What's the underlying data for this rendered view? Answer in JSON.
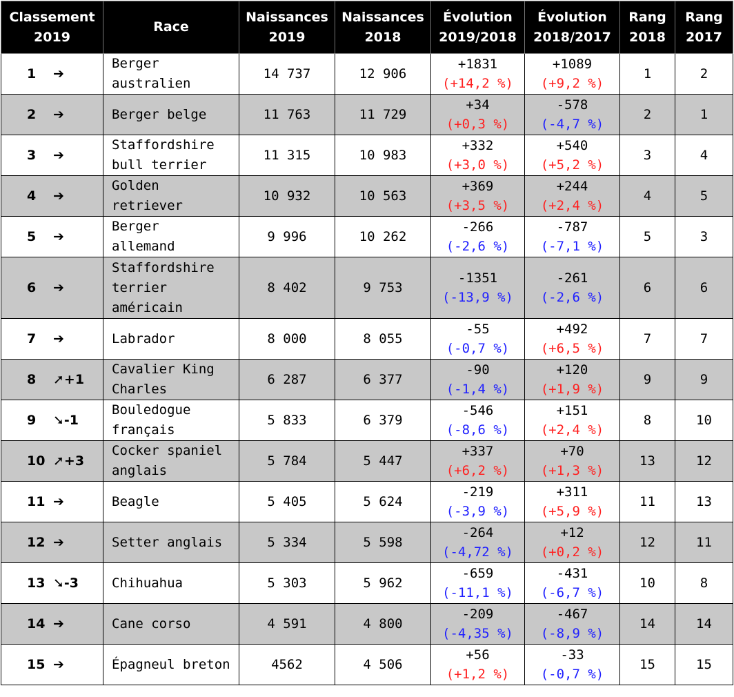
{
  "headers": {
    "rank": [
      "Classement",
      "2019"
    ],
    "race": [
      "Race"
    ],
    "n2019": [
      "Naissances",
      "2019"
    ],
    "n2018": [
      "Naissances",
      "2018"
    ],
    "evo1918": [
      "Évolution",
      "2019/2018"
    ],
    "evo1817": [
      "Évolution",
      "2018/2017"
    ],
    "rank2018": [
      "Rang",
      "2018"
    ],
    "rank2017": [
      "Rang",
      "2017"
    ]
  },
  "colors": {
    "increase": "#ff2020",
    "decrease": "#2020ff",
    "header_bg": "#000000",
    "row_alt": "#c8c8c8"
  },
  "rows": [
    {
      "rank": "1",
      "move": "➔",
      "race": [
        "Berger",
        "australien"
      ],
      "n2019": "14 737",
      "n2018": "12 906",
      "e1_delta": "+1831",
      "e1_pct": "(+14,2 %)",
      "e1_dir": "up",
      "e2_delta": "+1089",
      "e2_pct": "(+9,2 %)",
      "e2_dir": "up",
      "r2018": "1",
      "r2017": "2"
    },
    {
      "rank": "2",
      "move": "➔",
      "race": [
        "Berger belge"
      ],
      "n2019": "11 763",
      "n2018": "11 729",
      "e1_delta": "+34",
      "e1_pct": "(+0,3 %)",
      "e1_dir": "up",
      "e2_delta": "-578",
      "e2_pct": "(-4,7 %)",
      "e2_dir": "down",
      "r2018": "2",
      "r2017": "1"
    },
    {
      "rank": "3",
      "move": "➔",
      "race": [
        "Staffordshire",
        "bull terrier"
      ],
      "n2019": "11 315",
      "n2018": "10 983",
      "e1_delta": "+332",
      "e1_pct": "(+3,0 %)",
      "e1_dir": "up",
      "e2_delta": "+540",
      "e2_pct": "(+5,2 %)",
      "e2_dir": "up",
      "r2018": "3",
      "r2017": "4"
    },
    {
      "rank": "4",
      "move": "➔",
      "race": [
        "Golden",
        "retriever"
      ],
      "n2019": "10 932",
      "n2018": "10 563",
      "e1_delta": "+369",
      "e1_pct": "(+3,5 %)",
      "e1_dir": "up",
      "e2_delta": "+244",
      "e2_pct": "(+2,4 %)",
      "e2_dir": "up",
      "r2018": "4",
      "r2017": "5"
    },
    {
      "rank": "5",
      "move": "➔",
      "race": [
        "Berger",
        "allemand"
      ],
      "n2019": "9 996",
      "n2018": "10 262",
      "e1_delta": "-266",
      "e1_pct": "(-2,6 %)",
      "e1_dir": "down",
      "e2_delta": "-787",
      "e2_pct": "(-7,1 %)",
      "e2_dir": "down",
      "r2018": "5",
      "r2017": "3"
    },
    {
      "rank": "6",
      "move": "➔",
      "race": [
        "Staffordshire",
        "terrier",
        "américain"
      ],
      "n2019": "8 402",
      "n2018": "9 753",
      "e1_delta": "-1351",
      "e1_pct": "(-13,9 %)",
      "e1_dir": "down",
      "e2_delta": "-261",
      "e2_pct": "(-2,6 %)",
      "e2_dir": "down",
      "r2018": "6",
      "r2017": "6"
    },
    {
      "rank": "7",
      "move": "➔",
      "race": [
        "Labrador"
      ],
      "n2019": "8 000",
      "n2018": "8 055",
      "e1_delta": "-55",
      "e1_pct": "(-0,7 %)",
      "e1_dir": "down",
      "e2_delta": "+492",
      "e2_pct": "(+6,5 %)",
      "e2_dir": "up",
      "r2018": "7",
      "r2017": "7"
    },
    {
      "rank": "8",
      "move": "➚+1",
      "race": [
        "Cavalier King",
        "Charles"
      ],
      "n2019": "6 287",
      "n2018": "6 377",
      "e1_delta": "-90",
      "e1_pct": "(-1,4 %)",
      "e1_dir": "down",
      "e2_delta": "+120",
      "e2_pct": "(+1,9 %)",
      "e2_dir": "up",
      "r2018": "9",
      "r2017": "9"
    },
    {
      "rank": "9",
      "move": "➘-1",
      "race": [
        "Bouledogue",
        "français"
      ],
      "n2019": "5 833",
      "n2018": "6 379",
      "e1_delta": "-546",
      "e1_pct": "(-8,6 %)",
      "e1_dir": "down",
      "e2_delta": "+151",
      "e2_pct": "(+2,4 %)",
      "e2_dir": "up",
      "r2018": "8",
      "r2017": "10"
    },
    {
      "rank": "10",
      "move": "➚+3",
      "race": [
        "Cocker spaniel",
        "anglais"
      ],
      "n2019": "5 784",
      "n2018": "5 447",
      "e1_delta": "+337",
      "e1_pct": "(+6,2 %)",
      "e1_dir": "up",
      "e2_delta": "+70",
      "e2_pct": "(+1,3 %)",
      "e2_dir": "up",
      "r2018": "13",
      "r2017": "12"
    },
    {
      "rank": "11",
      "move": "➔",
      "race": [
        "Beagle"
      ],
      "n2019": "5 405",
      "n2018": "5 624",
      "e1_delta": "-219",
      "e1_pct": "(-3,9 %)",
      "e1_dir": "down",
      "e2_delta": "+311",
      "e2_pct": "(+5,9 %)",
      "e2_dir": "up",
      "r2018": "11",
      "r2017": "13"
    },
    {
      "rank": "12",
      "move": "➔",
      "race": [
        "Setter anglais"
      ],
      "n2019": "5 334",
      "n2018": "5 598",
      "e1_delta": "-264",
      "e1_pct": "(-4,72 %)",
      "e1_dir": "down",
      "e2_delta": "+12",
      "e2_pct": "(+0,2 %)",
      "e2_dir": "up",
      "r2018": "12",
      "r2017": "11"
    },
    {
      "rank": "13",
      "move": "➘-3",
      "race": [
        "Chihuahua"
      ],
      "n2019": "5 303",
      "n2018": "5 962",
      "e1_delta": "-659",
      "e1_pct": "(-11,1 %)",
      "e1_dir": "down",
      "e2_delta": "-431",
      "e2_pct": "(-6,7 %)",
      "e2_dir": "down",
      "r2018": "10",
      "r2017": "8"
    },
    {
      "rank": "14",
      "move": "➔",
      "race": [
        "Cane corso"
      ],
      "n2019": "4 591",
      "n2018": "4 800",
      "e1_delta": "-209",
      "e1_pct": "(-4,35 %)",
      "e1_dir": "down",
      "e2_delta": "-467",
      "e2_pct": "(-8,9 %)",
      "e2_dir": "down",
      "r2018": "14",
      "r2017": "14"
    },
    {
      "rank": "15",
      "move": "➔",
      "race": [
        "Épagneul breton"
      ],
      "n2019": "4562",
      "n2018": "4 506",
      "e1_delta": "+56",
      "e1_pct": "(+1,2 %)",
      "e1_dir": "up",
      "e2_delta": "-33",
      "e2_pct": "(-0,7 %)",
      "e2_dir": "down",
      "r2018": "15",
      "r2017": "15"
    }
  ]
}
